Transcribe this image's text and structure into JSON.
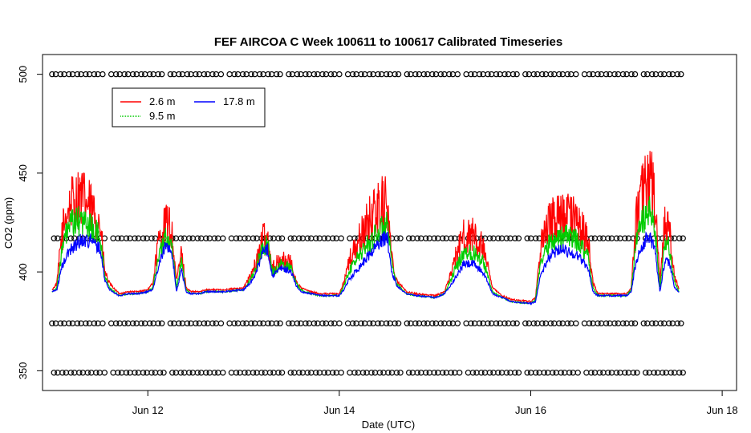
{
  "chart_data": {
    "type": "line",
    "title": "FEF AIRCOA C  Week 100611 to 100617  Calibrated Timeseries",
    "xlabel": "Date (UTC)",
    "ylabel": "CO2 (ppm)",
    "xlim": [
      10.9,
      18.15
    ],
    "ylim": [
      340,
      510
    ],
    "x_unit": "day of June 2010 (UTC)",
    "x_ticks": [
      {
        "value": 12,
        "label": "Jun 12"
      },
      {
        "value": 14,
        "label": "Jun 14"
      },
      {
        "value": 16,
        "label": "Jun 16"
      },
      {
        "value": 18,
        "label": "Jun 18"
      }
    ],
    "y_ticks": [
      {
        "value": 350,
        "label": "350"
      },
      {
        "value": 400,
        "label": "400"
      },
      {
        "value": 450,
        "label": "450"
      },
      {
        "value": 500,
        "label": "500"
      }
    ],
    "legend": {
      "position": "top-left",
      "entries": [
        {
          "name": "2.6 m",
          "color": "#ff0000"
        },
        {
          "name": "9.5 m",
          "color": "#00cc00"
        },
        {
          "name": "17.8 m",
          "color": "#0000ff"
        }
      ]
    },
    "series": [
      {
        "name": "2.6 m",
        "color": "#ff0000",
        "x": [
          11.0,
          11.05,
          11.1,
          11.15,
          11.2,
          11.3,
          11.4,
          11.5,
          11.55,
          11.6,
          11.7,
          11.8,
          11.9,
          12.0,
          12.05,
          12.1,
          12.15,
          12.2,
          12.25,
          12.3,
          12.35,
          12.4,
          12.45,
          12.5,
          12.55,
          12.6,
          12.7,
          12.8,
          13.0,
          13.1,
          13.2,
          13.25,
          13.3,
          13.4,
          13.5,
          13.55,
          13.6,
          13.7,
          13.8,
          14.0,
          14.05,
          14.1,
          14.2,
          14.3,
          14.4,
          14.5,
          14.55,
          14.6,
          14.7,
          14.8,
          15.0,
          15.1,
          15.2,
          15.3,
          15.4,
          15.5,
          15.55,
          15.6,
          15.7,
          15.8,
          16.0,
          16.05,
          16.1,
          16.2,
          16.3,
          16.4,
          16.5,
          16.6,
          16.65,
          16.7,
          16.8,
          17.0,
          17.05,
          17.1,
          17.15,
          17.2,
          17.25,
          17.3,
          17.35,
          17.4,
          17.45,
          17.5,
          17.55
        ],
        "values": [
          391,
          394,
          418,
          430,
          435,
          438,
          432,
          425,
          400,
          394,
          389,
          390,
          390,
          391,
          394,
          412,
          420,
          425,
          420,
          395,
          410,
          392,
          390,
          390,
          390,
          391,
          391,
          391,
          392,
          400,
          416,
          418,
          402,
          406,
          404,
          395,
          392,
          390,
          389,
          389,
          395,
          405,
          415,
          425,
          432,
          436,
          406,
          396,
          390,
          389,
          388,
          390,
          405,
          418,
          418,
          412,
          402,
          392,
          388,
          386,
          385,
          387,
          412,
          425,
          428,
          428,
          425,
          415,
          395,
          389,
          389,
          389,
          392,
          425,
          438,
          445,
          448,
          432,
          395,
          425,
          420,
          398,
          391
        ]
      },
      {
        "name": "9.5 m",
        "color": "#00cc00",
        "x": [
          11.0,
          11.05,
          11.1,
          11.15,
          11.2,
          11.3,
          11.4,
          11.5,
          11.55,
          11.6,
          11.7,
          11.8,
          11.9,
          12.0,
          12.05,
          12.1,
          12.15,
          12.2,
          12.25,
          12.3,
          12.35,
          12.4,
          12.45,
          12.5,
          12.55,
          12.6,
          12.7,
          12.8,
          13.0,
          13.1,
          13.2,
          13.25,
          13.3,
          13.4,
          13.5,
          13.55,
          13.6,
          13.7,
          13.8,
          14.0,
          14.05,
          14.1,
          14.2,
          14.3,
          14.4,
          14.5,
          14.55,
          14.6,
          14.7,
          14.8,
          15.0,
          15.1,
          15.2,
          15.3,
          15.4,
          15.5,
          15.55,
          15.6,
          15.7,
          15.8,
          16.0,
          16.05,
          16.1,
          16.2,
          16.3,
          16.4,
          16.5,
          16.6,
          16.65,
          16.7,
          16.8,
          17.0,
          17.05,
          17.1,
          17.15,
          17.2,
          17.25,
          17.3,
          17.35,
          17.4,
          17.45,
          17.5,
          17.55
        ],
        "values": [
          390,
          392,
          410,
          420,
          424,
          426,
          423,
          418,
          398,
          392,
          388,
          389,
          389,
          390,
          392,
          405,
          414,
          418,
          414,
          392,
          405,
          391,
          389,
          389,
          389,
          390,
          390,
          390,
          391,
          398,
          412,
          415,
          400,
          404,
          402,
          394,
          391,
          389,
          388,
          388,
          393,
          400,
          408,
          414,
          420,
          424,
          403,
          394,
          389,
          388,
          387,
          389,
          400,
          410,
          410,
          406,
          398,
          390,
          387,
          385,
          384,
          386,
          405,
          415,
          418,
          418,
          415,
          408,
          392,
          388,
          388,
          388,
          391,
          415,
          424,
          428,
          430,
          420,
          392,
          415,
          412,
          395,
          390
        ]
      },
      {
        "name": "17.8 m",
        "color": "#0000ff",
        "x": [
          11.0,
          11.05,
          11.1,
          11.15,
          11.2,
          11.3,
          11.4,
          11.5,
          11.55,
          11.6,
          11.7,
          11.8,
          11.9,
          12.0,
          12.05,
          12.1,
          12.15,
          12.2,
          12.25,
          12.3,
          12.35,
          12.4,
          12.45,
          12.5,
          12.55,
          12.6,
          12.7,
          12.8,
          13.0,
          13.1,
          13.2,
          13.25,
          13.3,
          13.4,
          13.5,
          13.55,
          13.6,
          13.7,
          13.8,
          14.0,
          14.05,
          14.1,
          14.2,
          14.3,
          14.4,
          14.5,
          14.55,
          14.6,
          14.7,
          14.8,
          15.0,
          15.1,
          15.2,
          15.3,
          15.4,
          15.5,
          15.55,
          15.6,
          15.7,
          15.8,
          16.0,
          16.05,
          16.1,
          16.2,
          16.3,
          16.4,
          16.5,
          16.6,
          16.65,
          16.7,
          16.8,
          17.0,
          17.05,
          17.1,
          17.15,
          17.2,
          17.25,
          17.3,
          17.35,
          17.4,
          17.45,
          17.5,
          17.55
        ],
        "values": [
          390,
          391,
          402,
          408,
          412,
          416,
          416,
          412,
          396,
          391,
          388,
          389,
          389,
          390,
          391,
          400,
          409,
          414,
          410,
          390,
          401,
          390,
          389,
          389,
          389,
          390,
          390,
          390,
          391,
          396,
          410,
          412,
          398,
          402,
          400,
          393,
          390,
          389,
          388,
          388,
          391,
          396,
          402,
          408,
          414,
          418,
          400,
          393,
          389,
          388,
          387,
          389,
          396,
          404,
          404,
          400,
          395,
          389,
          387,
          385,
          384,
          385,
          398,
          408,
          412,
          410,
          408,
          402,
          390,
          388,
          388,
          388,
          390,
          405,
          412,
          416,
          418,
          410,
          390,
          405,
          405,
          392,
          390
        ]
      },
      {
        "name": "flag markers",
        "marker": "circle",
        "color": "#000000",
        "levels": [
          500,
          417,
          374,
          349
        ],
        "x_range": [
          11.0,
          17.6
        ]
      }
    ]
  }
}
